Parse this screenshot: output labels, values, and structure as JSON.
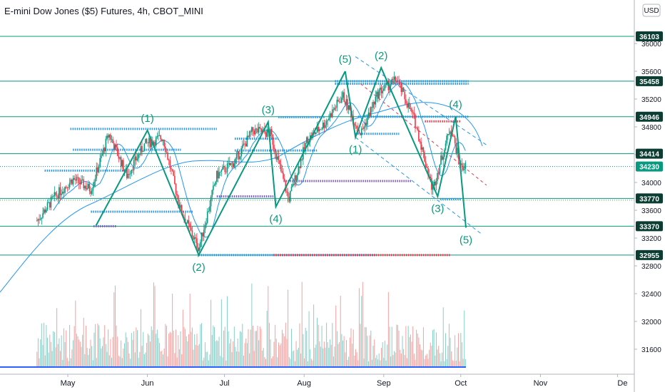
{
  "header": {
    "title": "E-mini Dow Jones ($5) Futures, 4h, CBOT_MINI",
    "currency": "USD"
  },
  "colors": {
    "axis_line": "#b2b5be",
    "text": "#131722",
    "level_line": "#089981",
    "level_label_bg": "#0b3d33",
    "current_label_bg": "#089981",
    "wave_line": "#089981",
    "wave_label": "#0a9a7d",
    "ma_line": "#2196f3",
    "channel_line": "#2196f3",
    "red_line": "#f23645",
    "green_dotted": "#4caf50",
    "purple_line": "#7e57c2",
    "candle_up": "#089981",
    "candle_down": "#f23645",
    "volume_up": "#26a69a",
    "volume_down": "#ef5350"
  },
  "chart_data": {
    "type": "line",
    "title": "E-mini Dow Jones ($5) Futures, 4h, CBOT_MINI",
    "xlabel": "",
    "ylabel": "",
    "ylim": [
      31300,
      36400
    ],
    "x_tick_labels": [
      "May",
      "Jun",
      "Jul",
      "Aug",
      "Sep",
      "Oct",
      "Nov",
      "De"
    ],
    "y_tick_labels": [
      31600,
      32000,
      32400,
      32800,
      33200,
      33600,
      34000,
      34400,
      34800,
      35200,
      35600,
      36000
    ],
    "grid": false,
    "price_series": {
      "name": "",
      "x": [
        "2022-04-19",
        "2022-04-26",
        "2022-05-03",
        "2022-05-10",
        "2022-05-17",
        "2022-05-24",
        "2022-05-31",
        "2022-06-07",
        "2022-06-14",
        "2022-06-21",
        "2022-06-28",
        "2022-07-05",
        "2022-07-12",
        "2022-07-19",
        "2022-07-26",
        "2022-08-02",
        "2022-08-09",
        "2022-08-16",
        "2022-08-23",
        "2022-08-30",
        "2022-09-06",
        "2022-09-13",
        "2022-09-20",
        "2022-09-27",
        "2022-10-01"
      ],
      "y": [
        33450,
        33800,
        34050,
        33900,
        34700,
        34100,
        34550,
        34650,
        33600,
        33050,
        34100,
        34300,
        34750,
        34700,
        33750,
        34600,
        34850,
        35250,
        34700,
        35300,
        35480,
        34900,
        33900,
        34800,
        34230
      ]
    },
    "horizontal_levels": [
      {
        "value": 36103,
        "label": "36103"
      },
      {
        "value": 35458,
        "label": "35458"
      },
      {
        "value": 34946,
        "label": "34946"
      },
      {
        "value": 34414,
        "label": "34414"
      },
      {
        "value": 33770,
        "label": "33770"
      },
      {
        "value": 33370,
        "label": "33370"
      },
      {
        "value": 32955,
        "label": "32955"
      }
    ],
    "current_price": {
      "value": 34230,
      "label": "34230"
    },
    "wave_annotations": [
      {
        "label": "(1)",
        "date": "2022-06-01",
        "price": 34750
      },
      {
        "label": "(2)",
        "date": "2022-06-21",
        "price": 32955
      },
      {
        "label": "(3)",
        "date": "2022-07-18",
        "price": 34870
      },
      {
        "label": "(4)",
        "date": "2022-07-21",
        "price": 33650
      },
      {
        "label": "(5)",
        "date": "2022-08-17",
        "price": 35600
      },
      {
        "label": "(1)",
        "date": "2022-08-21",
        "price": 34650
      },
      {
        "label": "(2)",
        "date": "2022-08-31",
        "price": 35650
      },
      {
        "label": "(3)",
        "date": "2022-09-22",
        "price": 33800
      },
      {
        "label": "(4)",
        "date": "2022-09-29",
        "price": 34950
      },
      {
        "label": "(5)",
        "date": "2022-10-03",
        "price": 33350
      }
    ]
  }
}
